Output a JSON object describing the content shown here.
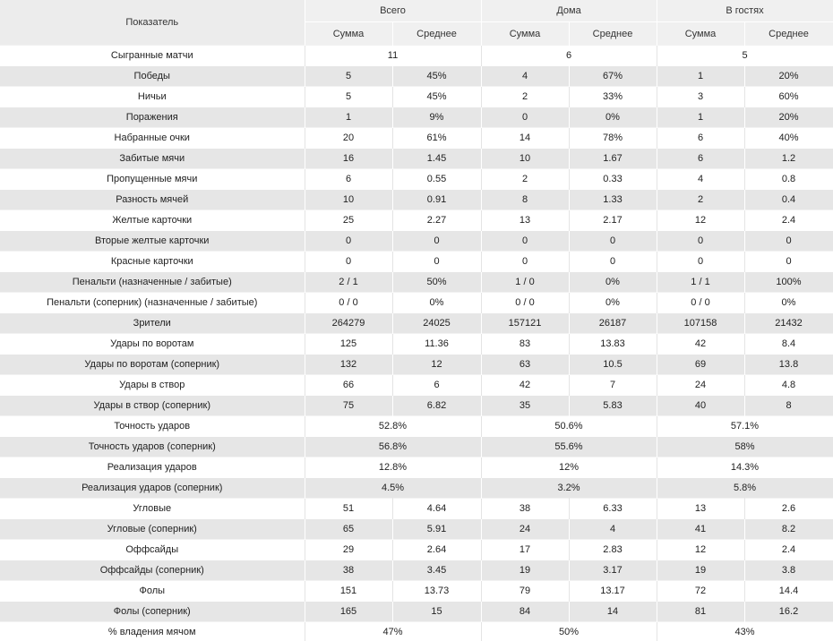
{
  "header": {
    "label": "Показатель",
    "groups": [
      "Всего",
      "Дома",
      "В гостях"
    ],
    "sub": [
      "Сумма",
      "Среднее"
    ]
  },
  "rows": [
    {
      "label": "Сыгранные матчи",
      "merged": [
        "11",
        "6",
        "5"
      ]
    },
    {
      "label": "Победы",
      "v": [
        "5",
        "45%",
        "4",
        "67%",
        "1",
        "20%"
      ]
    },
    {
      "label": "Ничьи",
      "v": [
        "5",
        "45%",
        "2",
        "33%",
        "3",
        "60%"
      ]
    },
    {
      "label": "Поражения",
      "v": [
        "1",
        "9%",
        "0",
        "0%",
        "1",
        "20%"
      ]
    },
    {
      "label": "Набранные очки",
      "v": [
        "20",
        "61%",
        "14",
        "78%",
        "6",
        "40%"
      ]
    },
    {
      "label": "Забитые мячи",
      "v": [
        "16",
        "1.45",
        "10",
        "1.67",
        "6",
        "1.2"
      ]
    },
    {
      "label": "Пропущенные мячи",
      "v": [
        "6",
        "0.55",
        "2",
        "0.33",
        "4",
        "0.8"
      ]
    },
    {
      "label": "Разность мячей",
      "v": [
        "10",
        "0.91",
        "8",
        "1.33",
        "2",
        "0.4"
      ]
    },
    {
      "label": "Желтые карточки",
      "v": [
        "25",
        "2.27",
        "13",
        "2.17",
        "12",
        "2.4"
      ]
    },
    {
      "label": "Вторые желтые карточки",
      "v": [
        "0",
        "0",
        "0",
        "0",
        "0",
        "0"
      ]
    },
    {
      "label": "Красные карточки",
      "v": [
        "0",
        "0",
        "0",
        "0",
        "0",
        "0"
      ]
    },
    {
      "label": "Пенальти (назначенные / забитые)",
      "v": [
        "2 / 1",
        "50%",
        "1 / 0",
        "0%",
        "1 / 1",
        "100%"
      ]
    },
    {
      "label": "Пенальти (соперник) (назначенные / забитые)",
      "v": [
        "0 / 0",
        "0%",
        "0 / 0",
        "0%",
        "0 / 0",
        "0%"
      ]
    },
    {
      "label": "Зрители",
      "v": [
        "264279",
        "24025",
        "157121",
        "26187",
        "107158",
        "21432"
      ]
    },
    {
      "label": "Удары по воротам",
      "v": [
        "125",
        "11.36",
        "83",
        "13.83",
        "42",
        "8.4"
      ]
    },
    {
      "label": "Удары по воротам (соперник)",
      "v": [
        "132",
        "12",
        "63",
        "10.5",
        "69",
        "13.8"
      ]
    },
    {
      "label": "Удары в створ",
      "v": [
        "66",
        "6",
        "42",
        "7",
        "24",
        "4.8"
      ]
    },
    {
      "label": "Удары в створ (соперник)",
      "v": [
        "75",
        "6.82",
        "35",
        "5.83",
        "40",
        "8"
      ]
    },
    {
      "label": "Точность ударов",
      "merged": [
        "52.8%",
        "50.6%",
        "57.1%"
      ]
    },
    {
      "label": "Точность ударов (соперник)",
      "merged": [
        "56.8%",
        "55.6%",
        "58%"
      ]
    },
    {
      "label": "Реализация ударов",
      "merged": [
        "12.8%",
        "12%",
        "14.3%"
      ]
    },
    {
      "label": "Реализация ударов (соперник)",
      "merged": [
        "4.5%",
        "3.2%",
        "5.8%"
      ]
    },
    {
      "label": "Угловые",
      "v": [
        "51",
        "4.64",
        "38",
        "6.33",
        "13",
        "2.6"
      ]
    },
    {
      "label": "Угловые (соперник)",
      "v": [
        "65",
        "5.91",
        "24",
        "4",
        "41",
        "8.2"
      ]
    },
    {
      "label": "Оффсайды",
      "v": [
        "29",
        "2.64",
        "17",
        "2.83",
        "12",
        "2.4"
      ]
    },
    {
      "label": "Оффсайды (соперник)",
      "v": [
        "38",
        "3.45",
        "19",
        "3.17",
        "19",
        "3.8"
      ]
    },
    {
      "label": "Фолы",
      "v": [
        "151",
        "13.73",
        "79",
        "13.17",
        "72",
        "14.4"
      ]
    },
    {
      "label": "Фолы (соперник)",
      "v": [
        "165",
        "15",
        "84",
        "14",
        "81",
        "16.2"
      ]
    },
    {
      "label": "% владения мячом",
      "merged": [
        "47%",
        "50%",
        "43%"
      ]
    }
  ]
}
